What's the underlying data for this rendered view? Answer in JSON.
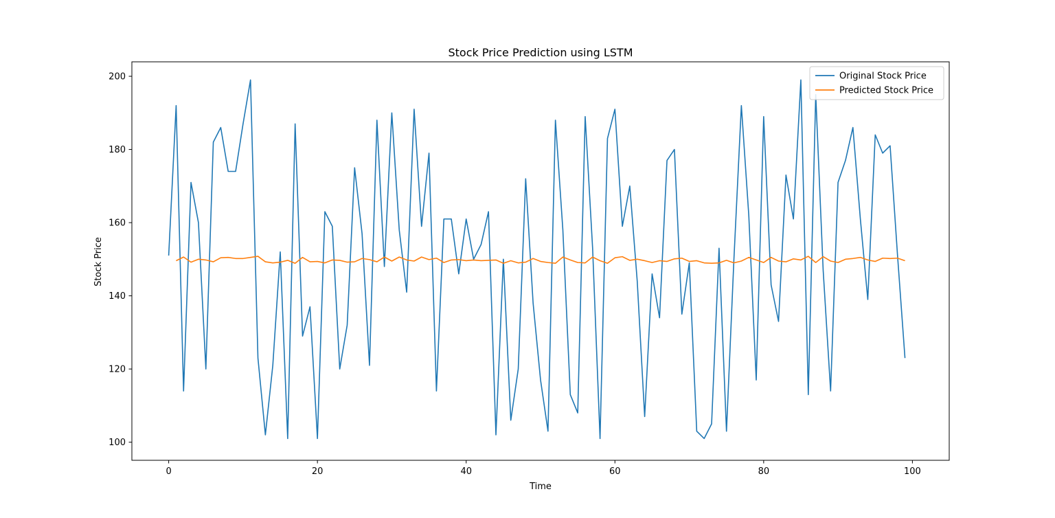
{
  "chart_data": {
    "type": "line",
    "title": "Stock Price Prediction using LSTM",
    "xlabel": "Time",
    "ylabel": "Stock Price",
    "xlim": [
      -4.95,
      104.95
    ],
    "ylim": [
      95.05,
      203.95
    ],
    "xticks": [
      0,
      20,
      40,
      60,
      80,
      100
    ],
    "yticks": [
      100,
      120,
      140,
      160,
      180,
      200
    ],
    "grid": false,
    "legend_position": "upper-right",
    "series": [
      {
        "name": "Original Stock Price",
        "color": "#1f77b4",
        "x_start": 0,
        "values": [
          151,
          192,
          114,
          171,
          160,
          120,
          182,
          186,
          174,
          174,
          187,
          199,
          123,
          102,
          121,
          152,
          101,
          187,
          129,
          137,
          101,
          163,
          159,
          120,
          132,
          175,
          157,
          121,
          188,
          148,
          190,
          158,
          141,
          191,
          159,
          179,
          114,
          161,
          161,
          146,
          161,
          150,
          154,
          163,
          102,
          150,
          106,
          120,
          172,
          138,
          117,
          103,
          188,
          158,
          113,
          108,
          189,
          153,
          101,
          183,
          191,
          159,
          170,
          144,
          107,
          146,
          134,
          177,
          180,
          135,
          149,
          103,
          101,
          105,
          153,
          103,
          150,
          192,
          162,
          117,
          189,
          143,
          133,
          173,
          161,
          199,
          113,
          195,
          147,
          114,
          171,
          177,
          186,
          161,
          139,
          184,
          179,
          181,
          151,
          123
        ]
      },
      {
        "name": "Predicted Stock Price",
        "color": "#ff7f0e",
        "x_start": 1,
        "values": [
          149.6,
          150.6,
          149.2,
          150.0,
          149.8,
          149.3,
          150.4,
          150.5,
          150.2,
          150.2,
          150.5,
          150.8,
          149.3,
          149.0,
          149.2,
          149.7,
          148.9,
          150.5,
          149.3,
          149.4,
          149.0,
          149.8,
          149.7,
          149.2,
          149.3,
          150.2,
          149.9,
          149.3,
          150.6,
          149.5,
          150.6,
          149.8,
          149.5,
          150.6,
          149.9,
          150.3,
          149.1,
          149.8,
          149.9,
          149.6,
          149.8,
          149.6,
          149.7,
          149.8,
          148.9,
          149.6,
          149.0,
          149.2,
          150.2,
          149.4,
          149.1,
          148.9,
          150.6,
          149.8,
          149.1,
          149.0,
          150.6,
          149.6,
          148.9,
          150.4,
          150.7,
          149.7,
          150.0,
          149.6,
          149.1,
          149.6,
          149.4,
          150.1,
          150.3,
          149.4,
          149.6,
          149.0,
          148.9,
          149.0,
          149.7,
          149.0,
          149.5,
          150.5,
          149.8,
          149.1,
          150.5,
          149.5,
          149.3,
          150.1,
          149.8,
          150.8,
          149.1,
          150.7,
          149.5,
          149.1,
          150.0,
          150.2,
          150.5,
          149.8,
          149.4,
          150.3,
          150.2,
          150.3,
          149.6
        ]
      }
    ]
  }
}
